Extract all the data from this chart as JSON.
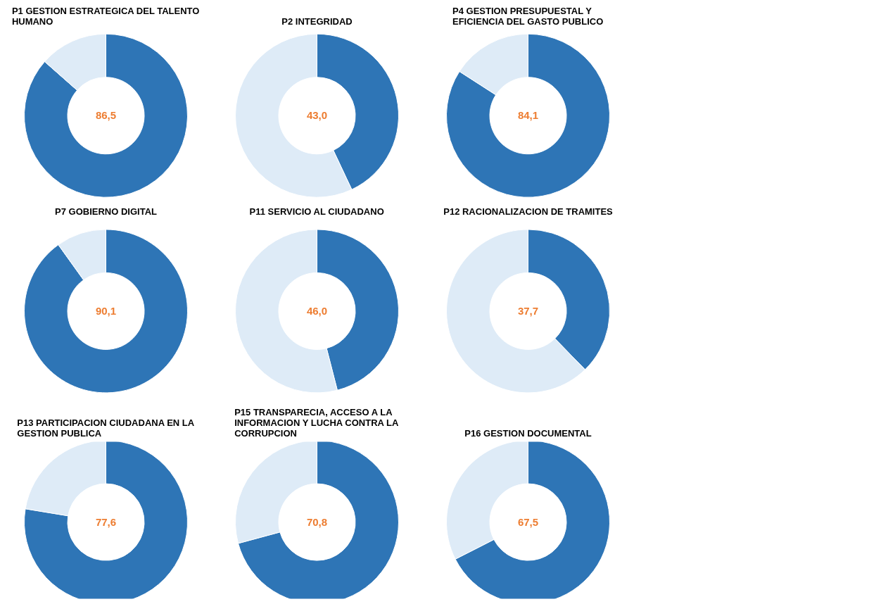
{
  "chart_data": [
    {
      "type": "donut",
      "title": "P1 GESTION ESTRATEGICA DEL TALENTO HUMANO",
      "categories": [
        null,
        null
      ],
      "values": [
        86.5,
        13.5
      ],
      "colors": [
        "#2e75b6",
        "#deebf7"
      ],
      "value_labels": [
        "86,5",
        null
      ]
    },
    {
      "type": "donut",
      "title": "P2 INTEGRIDAD",
      "categories": [
        null,
        null
      ],
      "values": [
        43.0,
        57.0
      ],
      "colors": [
        "#2e75b6",
        "#deebf7"
      ],
      "value_labels": [
        "43,0",
        null
      ]
    },
    {
      "type": "donut",
      "title": "P4 GESTION PRESUPUESTAL Y EFICIENCIA DEL GASTO PUBLICO",
      "categories": [
        null,
        null
      ],
      "values": [
        84.1,
        15.9
      ],
      "colors": [
        "#2e75b6",
        "#deebf7"
      ],
      "value_labels": [
        "84,1",
        null
      ]
    },
    {
      "type": "donut",
      "title": "P7 GOBIERNO DIGITAL",
      "categories": [
        null,
        null
      ],
      "values": [
        90.1,
        9.9
      ],
      "colors": [
        "#2e75b6",
        "#deebf7"
      ],
      "value_labels": [
        "90,1",
        null
      ]
    },
    {
      "type": "donut",
      "title": "P11 SERVICIO AL CIUDADANO",
      "categories": [
        null,
        null
      ],
      "values": [
        46.0,
        54.0
      ],
      "colors": [
        "#2e75b6",
        "#deebf7"
      ],
      "value_labels": [
        "46,0",
        null
      ]
    },
    {
      "type": "donut",
      "title": "P12 RACIONALIZACION DE TRAMITES",
      "categories": [
        null,
        null
      ],
      "values": [
        37.7,
        62.3
      ],
      "colors": [
        "#2e75b6",
        "#deebf7"
      ],
      "value_labels": [
        "37,7",
        null
      ]
    },
    {
      "type": "donut",
      "title": "P13 PARTICIPACION CIUDADANA EN LA GESTION PUBLICA",
      "categories": [
        null,
        null
      ],
      "values": [
        77.6,
        22.4
      ],
      "colors": [
        "#2e75b6",
        "#deebf7"
      ],
      "value_labels": [
        "77,6",
        null
      ]
    },
    {
      "type": "donut",
      "title": "P15 TRANSPARECIA, ACCESO A LA INFORMACION Y LUCHA CONTRA LA CORRUPCION",
      "categories": [
        null,
        null
      ],
      "values": [
        70.8,
        29.2
      ],
      "colors": [
        "#2e75b6",
        "#deebf7"
      ],
      "value_labels": [
        "70,8",
        null
      ]
    },
    {
      "type": "donut",
      "title": "P16 GESTION DOCUMENTAL",
      "categories": [
        null,
        null
      ],
      "values": [
        67.5,
        32.5
      ],
      "colors": [
        "#2e75b6",
        "#deebf7"
      ],
      "value_labels": [
        "67,5",
        null
      ]
    }
  ]
}
